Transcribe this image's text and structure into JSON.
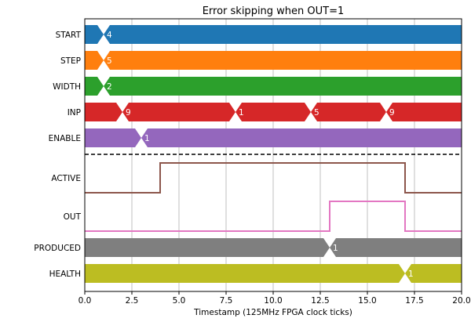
{
  "chart_data": {
    "type": "timing_diagram",
    "title": "Error skipping when OUT=1",
    "xlabel": "Timestamp (125MHz FPGA clock ticks)",
    "xlim": [
      0,
      20
    ],
    "x_ticks": [
      0,
      2.5,
      5,
      7.5,
      10,
      12.5,
      15,
      17.5,
      20
    ],
    "x_tick_labels": [
      "0.0",
      "2.5",
      "5.0",
      "7.5",
      "10.0",
      "12.5",
      "15.0",
      "17.5",
      "20.0"
    ],
    "grid": "vertical",
    "bus_signals_top": [
      {
        "name": "START",
        "color": "#1f77b4",
        "transitions": [
          {
            "x": 1,
            "value": "4"
          }
        ]
      },
      {
        "name": "STEP",
        "color": "#ff7f0e",
        "transitions": [
          {
            "x": 1,
            "value": "5"
          }
        ]
      },
      {
        "name": "WIDTH",
        "color": "#2ca02c",
        "transitions": [
          {
            "x": 1,
            "value": "2"
          }
        ]
      },
      {
        "name": "INP",
        "color": "#d62728",
        "transitions": [
          {
            "x": 2,
            "value": "9"
          },
          {
            "x": 8,
            "value": "1"
          },
          {
            "x": 12,
            "value": "5"
          },
          {
            "x": 16,
            "value": "9"
          }
        ]
      },
      {
        "name": "ENABLE",
        "color": "#9467bd",
        "transitions": [
          {
            "x": 3,
            "value": "1"
          }
        ]
      }
    ],
    "digital_signals": [
      {
        "name": "ACTIVE",
        "color": "#8c564b",
        "initial": 0,
        "changes": [
          {
            "x": 4,
            "level": 1
          },
          {
            "x": 17,
            "level": 0
          }
        ]
      },
      {
        "name": "OUT",
        "color": "#e377c2",
        "initial": 0,
        "changes": [
          {
            "x": 13,
            "level": 1
          },
          {
            "x": 17,
            "level": 0
          }
        ]
      }
    ],
    "bus_signals_bottom": [
      {
        "name": "PRODUCED",
        "color": "#7f7f7f",
        "transitions": [
          {
            "x": 13,
            "value": "1"
          }
        ]
      },
      {
        "name": "HEALTH",
        "color": "#bcbd22",
        "transitions": [
          {
            "x": 17,
            "value": "1"
          }
        ]
      }
    ],
    "divider": "dashed"
  }
}
